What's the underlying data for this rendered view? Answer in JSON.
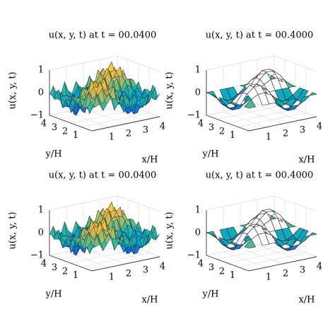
{
  "chart_data": [
    {
      "type": "surface",
      "title": "u(x, y, t) at t = 00.0400",
      "zlabel": "u(x, y, t)",
      "xlabel": "x/H",
      "ylabel": "y/H",
      "zlim": [
        -1,
        1
      ],
      "zticks": [
        {
          "value": -1,
          "label": "−1"
        },
        0,
        1
      ],
      "xlim": [
        0,
        4
      ],
      "xticks": [
        1,
        2,
        3,
        4
      ],
      "ylim": [
        0,
        4
      ],
      "yticks": [
        1,
        2,
        3,
        4
      ],
      "grid": true
    },
    {
      "type": "surface",
      "title": "u(x, y, t) at t = 00.4000",
      "zlabel": "u(x, y, t)",
      "xlabel": "x/H",
      "ylabel": "y/H",
      "zlim": [
        -1,
        1
      ],
      "zticks": [
        {
          "value": -1,
          "label": "−1"
        },
        0,
        1
      ],
      "xlim": [
        0,
        4
      ],
      "xticks": [
        1,
        2,
        3,
        4
      ],
      "ylim": [
        0,
        4
      ],
      "yticks": [
        1,
        2,
        3,
        4
      ],
      "grid": true
    },
    {
      "type": "surface",
      "title": "u(x, y, t) at t = 00.0400",
      "zlabel": "u(x, y, t)",
      "xlabel": "x/H",
      "ylabel": "y/H",
      "zlim": [
        -1,
        1
      ],
      "zticks": [
        {
          "value": -1,
          "label": "−1"
        },
        0,
        1
      ],
      "xlim": [
        0,
        4
      ],
      "xticks": [
        1,
        2,
        3,
        4
      ],
      "ylim": [
        0,
        4
      ],
      "yticks": [
        1,
        2,
        3,
        4
      ],
      "grid": true
    },
    {
      "type": "surface",
      "title": "u(x, y, t) at t = 00.4000",
      "zlabel": "u(x, y, t)",
      "xlabel": "x/H",
      "ylabel": "y/H",
      "zlim": [
        -1,
        1
      ],
      "zticks": [
        {
          "value": -1,
          "label": "−1"
        },
        0,
        1
      ],
      "xlim": [
        0,
        4
      ],
      "xticks": [
        1,
        2,
        3,
        4
      ],
      "ylim": [
        0,
        4
      ],
      "yticks": [
        1,
        2,
        3,
        4
      ],
      "grid": true
    }
  ]
}
